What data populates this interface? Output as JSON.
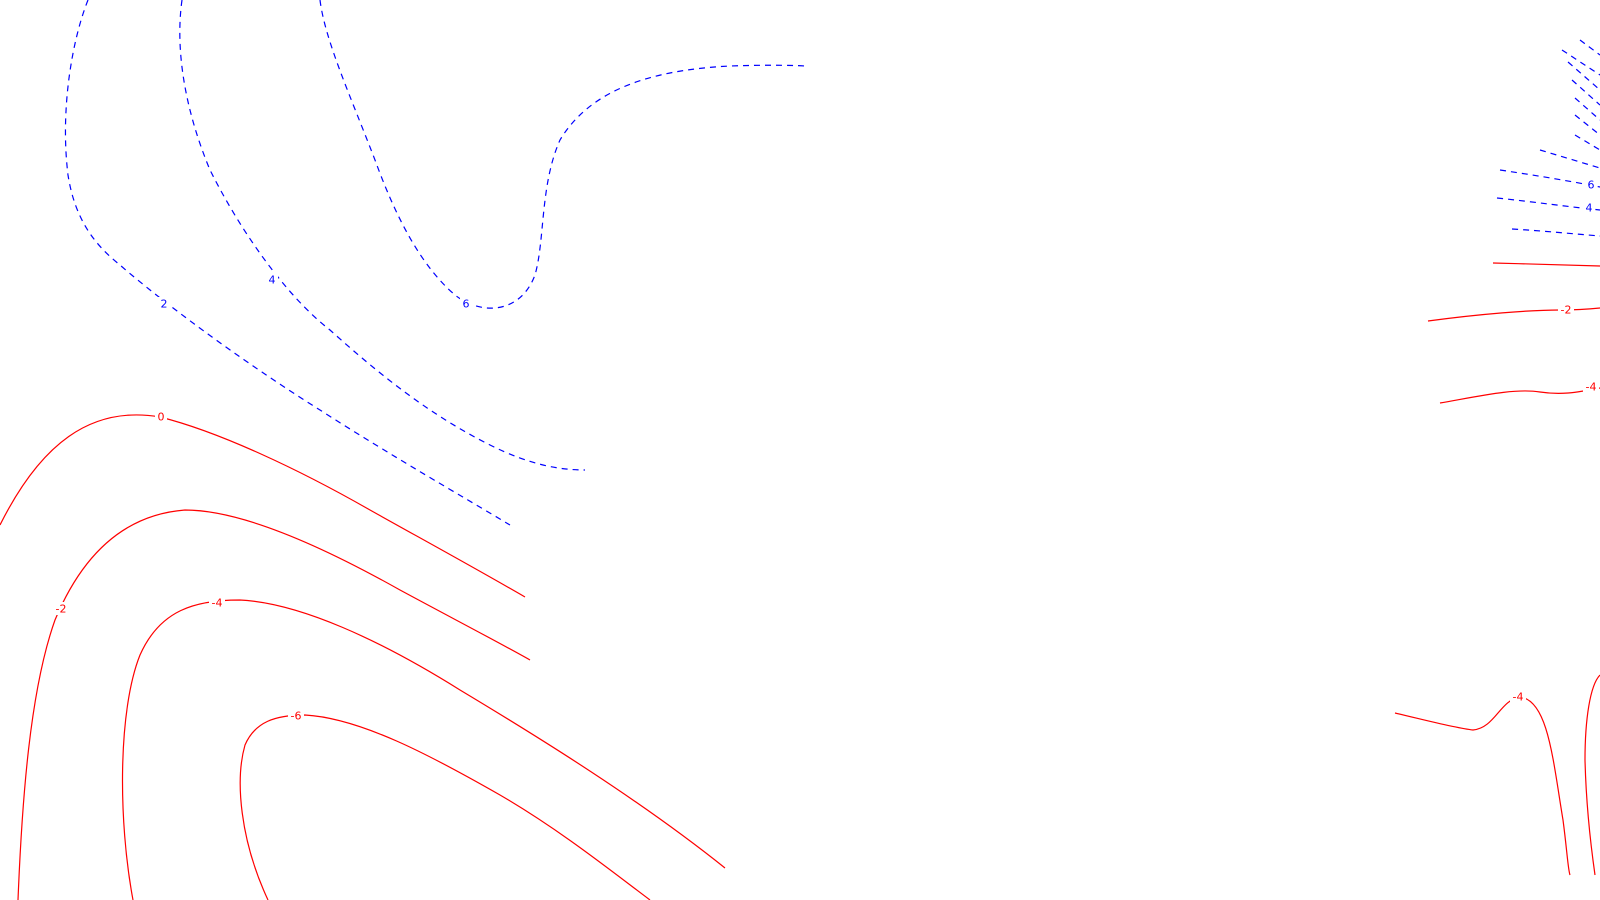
{
  "map": {
    "colors": {
      "positive": "#0000ff",
      "negative": "#ff0000",
      "background": "#ffffff"
    },
    "line_styles": {
      "positive": "dashed",
      "negative": "solid"
    },
    "contour_labels": [
      {
        "id": "label-pos-2",
        "text": "2",
        "sign": "positive"
      },
      {
        "id": "label-pos-4",
        "text": "4",
        "sign": "positive"
      },
      {
        "id": "label-pos-6",
        "text": "6",
        "sign": "positive"
      },
      {
        "id": "label-zero-left",
        "text": "0",
        "sign": "negative"
      },
      {
        "id": "label-neg-2-left",
        "text": "-2",
        "sign": "negative"
      },
      {
        "id": "label-neg-4-left",
        "text": "-4",
        "sign": "negative"
      },
      {
        "id": "label-neg-6-left",
        "text": "-6",
        "sign": "negative"
      },
      {
        "id": "label-pos-6-right",
        "text": "6",
        "sign": "positive"
      },
      {
        "id": "label-pos-4-right",
        "text": "4",
        "sign": "positive"
      },
      {
        "id": "label-neg-2-right",
        "text": "-2",
        "sign": "negative"
      },
      {
        "id": "label-neg-4-right-upper",
        "text": "-4",
        "sign": "negative"
      },
      {
        "id": "label-neg-4-right-lower",
        "text": "-4",
        "sign": "negative"
      }
    ]
  }
}
